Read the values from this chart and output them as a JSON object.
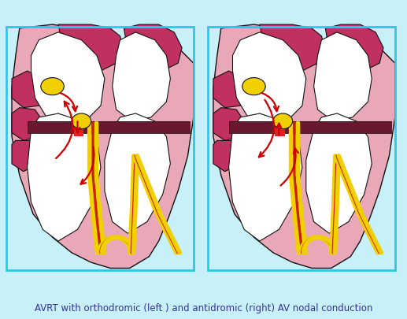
{
  "title": "AVRT with orthodromic (left ) and antidromic (right) AV nodal conduction",
  "title_fontsize": 8.5,
  "title_color": "#333399",
  "bg_color": "#c8f0f8",
  "heart_dark": "#c03060",
  "heart_pink": "#e8a8b8",
  "heart_light_pink": "#f0c8d0",
  "chamber_white": "#ffffff",
  "av_node_color": "#f0d000",
  "sa_node_color": "#f0d000",
  "septum_color": "#6a1830",
  "bundle_yellow": "#f0d000",
  "bundle_red": "#cc2200",
  "arrow_color": "#cc0000",
  "border_color": "#22ccee",
  "outline_color": "#111111"
}
